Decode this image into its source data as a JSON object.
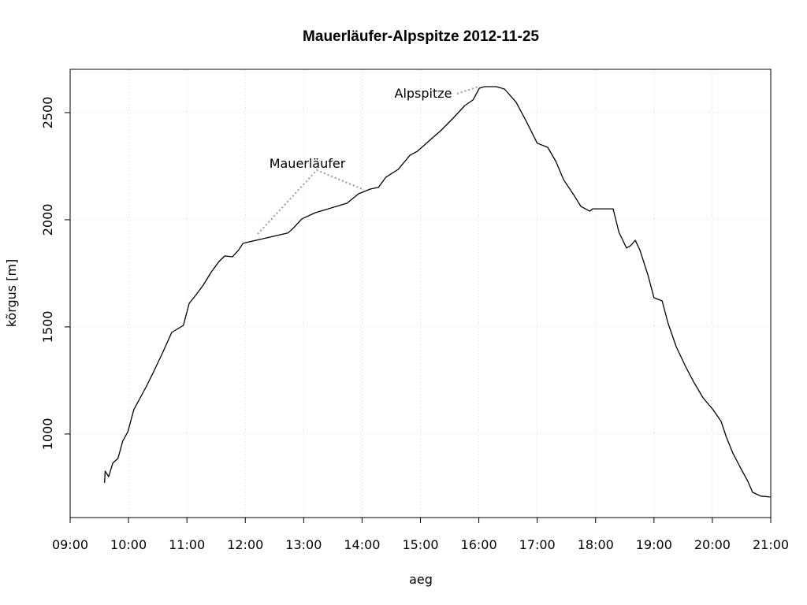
{
  "chart_data": {
    "type": "line",
    "title": "Mauerläufer-Alpspitze 2012-11-25",
    "xlabel": "aeg",
    "ylabel": "kõrgus [m]",
    "annotations": [
      "Mauerläufer",
      "Alpspitze"
    ],
    "color": "#000000",
    "grid": true,
    "xlim": [
      9,
      21
    ],
    "ylim": [
      610,
      2702
    ],
    "xticks": [
      {
        "value": 9,
        "label": "09:00"
      },
      {
        "value": 10,
        "label": "10:00"
      },
      {
        "value": 11,
        "label": "11:00"
      },
      {
        "value": 12,
        "label": "12:00"
      },
      {
        "value": 13,
        "label": "13:00"
      },
      {
        "value": 14,
        "label": "14:00"
      },
      {
        "value": 15,
        "label": "15:00"
      },
      {
        "value": 16,
        "label": "16:00"
      },
      {
        "value": 17,
        "label": "17:00"
      },
      {
        "value": 18,
        "label": "18:00"
      },
      {
        "value": 19,
        "label": "19:00"
      },
      {
        "value": 20,
        "label": "20:00"
      },
      {
        "value": 21,
        "label": "21:00"
      }
    ],
    "yticks": [
      1000,
      1500,
      2000,
      2500
    ],
    "x": [
      9.59,
      9.6,
      9.66,
      9.73,
      9.82,
      9.9,
      9.99,
      10.09,
      10.2,
      10.31,
      10.43,
      10.57,
      10.66,
      10.74,
      10.94,
      11.04,
      11.15,
      11.28,
      11.42,
      11.55,
      11.65,
      11.78,
      11.88,
      11.96,
      12.01,
      12.73,
      12.82,
      12.97,
      13.2,
      13.47,
      13.74,
      13.94,
      14.14,
      14.28,
      14.41,
      14.62,
      14.82,
      14.95,
      15.16,
      15.36,
      15.56,
      15.76,
      15.9,
      16.01,
      16.1,
      16.3,
      16.44,
      16.64,
      16.82,
      17.0,
      17.18,
      17.32,
      17.45,
      17.63,
      17.75,
      17.9,
      17.95,
      18.3,
      18.4,
      18.53,
      18.6,
      18.68,
      18.76,
      18.9,
      19.0,
      19.14,
      19.24,
      19.38,
      19.54,
      19.68,
      19.84,
      20.01,
      20.15,
      20.24,
      20.35,
      20.49,
      20.6,
      20.69,
      20.83,
      20.99
    ],
    "values": [
      772,
      827,
      801,
      864,
      886,
      967,
      1011,
      1114,
      1169,
      1224,
      1290,
      1371,
      1426,
      1474,
      1507,
      1610,
      1647,
      1695,
      1757,
      1805,
      1831,
      1827,
      1857,
      1890,
      1893,
      1938,
      1960,
      2004,
      2033,
      2055,
      2077,
      2121,
      2143,
      2151,
      2199,
      2235,
      2301,
      2320,
      2371,
      2419,
      2474,
      2533,
      2559,
      2614,
      2621,
      2621,
      2610,
      2548,
      2456,
      2357,
      2338,
      2272,
      2188,
      2114,
      2062,
      2040,
      2051,
      2051,
      1941,
      1868,
      1879,
      1904,
      1857,
      1739,
      1636,
      1621,
      1518,
      1408,
      1316,
      1243,
      1169,
      1114,
      1059,
      985,
      912,
      838,
      783,
      728,
      710,
      706
    ]
  }
}
